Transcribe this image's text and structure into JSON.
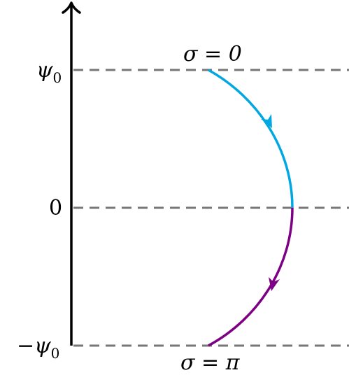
{
  "labels": {
    "psi_symbol": "ψ",
    "psi_subscript": "0",
    "minus_sign": "−",
    "zero": "0",
    "sigma_start": "σ = 0",
    "sigma_end": "σ = π"
  },
  "colors": {
    "axis": "#000000",
    "dashed_lines": "#777777",
    "upper_arc": "#00a7e1",
    "lower_arc": "#7d0085"
  },
  "markers": {
    "upper_arc_arrow": "arrow-down-right",
    "lower_arc_arrow": "arrow-down-left",
    "axis_arrow": "arrow-up"
  }
}
